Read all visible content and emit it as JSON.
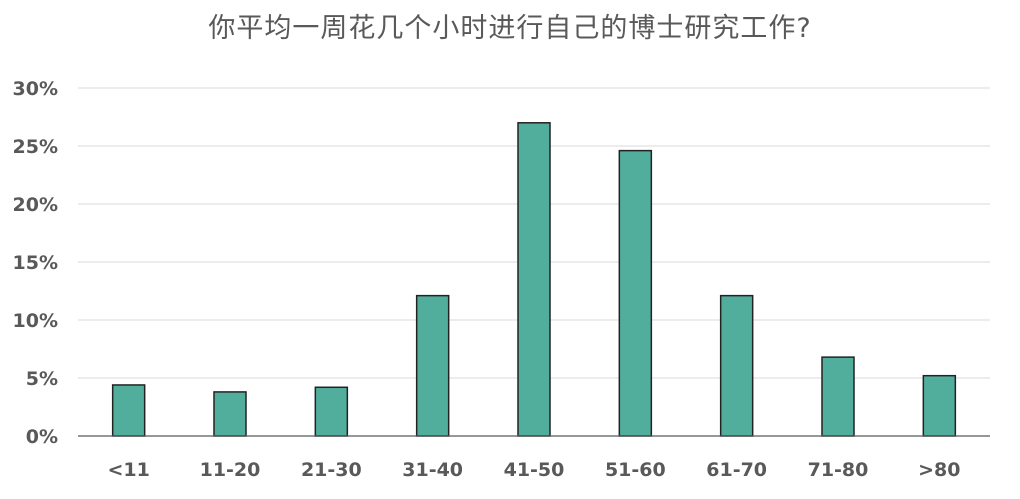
{
  "chart_data": {
    "type": "bar",
    "title": "你平均一周花几个小时进行自己的博士研究工作?",
    "categories": [
      "<11",
      "11-20",
      "21-30",
      "31-40",
      "41-50",
      "51-60",
      "61-70",
      "71-80",
      ">80"
    ],
    "values": [
      4.4,
      3.8,
      4.2,
      12.1,
      27.0,
      24.6,
      12.1,
      6.8,
      5.2
    ],
    "ylim": [
      0,
      30
    ],
    "yticks": [
      "0%",
      "5%",
      "10%",
      "15%",
      "20%",
      "25%",
      "30%"
    ],
    "grid": true,
    "bar_color": "#52ae9c"
  }
}
